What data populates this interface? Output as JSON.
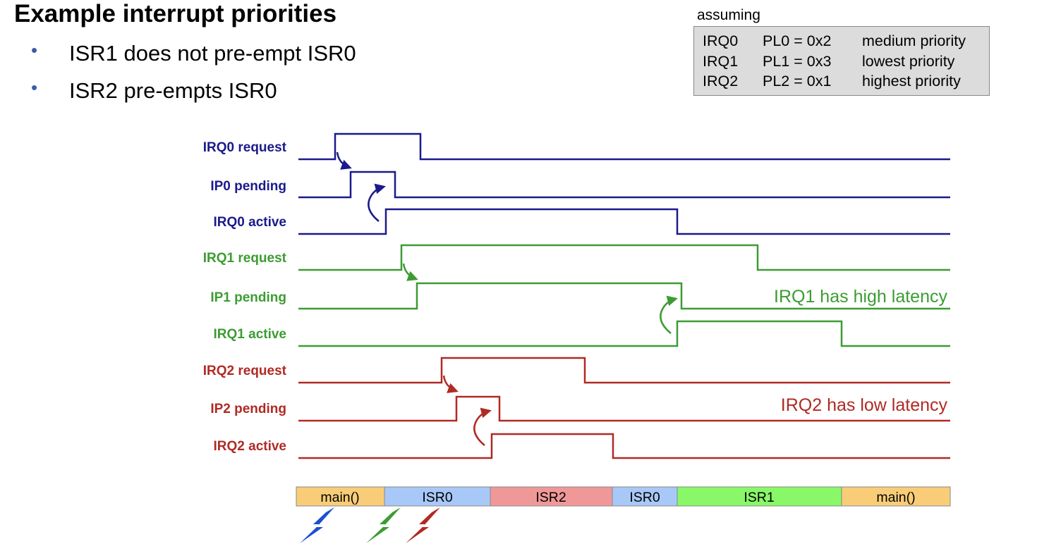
{
  "title": "Example interrupt priorities",
  "bullets": [
    "ISR1 does not pre-empt ISR0",
    "ISR2 pre-empts ISR0"
  ],
  "assumption": {
    "label": "assuming",
    "rows": [
      {
        "irq": "IRQ0",
        "pl": "PL0 = 0x2",
        "priority": "medium priority"
      },
      {
        "irq": "IRQ1",
        "pl": "PL1 = 0x3",
        "priority": "lowest priority"
      },
      {
        "irq": "IRQ2",
        "pl": "PL2 = 0x1",
        "priority": "highest priority"
      }
    ]
  },
  "colors": {
    "irq0": "#1a1a8c",
    "irq1": "#3c9c32",
    "irq2": "#b02a24"
  },
  "signals": [
    {
      "label": "IRQ0 request",
      "group": "irq0"
    },
    {
      "label": "IP0 pending",
      "group": "irq0"
    },
    {
      "label": "IRQ0 active",
      "group": "irq0"
    },
    {
      "label": "IRQ1 request",
      "group": "irq1"
    },
    {
      "label": "IP1 pending",
      "group": "irq1"
    },
    {
      "label": "IRQ1 active",
      "group": "irq1"
    },
    {
      "label": "IRQ2 request",
      "group": "irq2"
    },
    {
      "label": "IP2 pending",
      "group": "irq2"
    },
    {
      "label": "IRQ2 active",
      "group": "irq2"
    }
  ],
  "notes": {
    "irq1": "IRQ1 has high latency",
    "irq2": "IRQ2 has low latency"
  },
  "timeline": [
    {
      "label": "main()",
      "color": "#f9cd78"
    },
    {
      "label": "ISR0",
      "color": "#a8c8f8"
    },
    {
      "label": "ISR2",
      "color": "#f09898"
    },
    {
      "label": "ISR0",
      "color": "#a8c8f8"
    },
    {
      "label": "ISR1",
      "color": "#88f868"
    },
    {
      "label": "main()",
      "color": "#f9cd78"
    }
  ],
  "lightning": [
    {
      "icon": "lightning-bolt-icon",
      "color": "#1a4fd0"
    },
    {
      "icon": "lightning-bolt-icon",
      "color": "#3c9c32"
    },
    {
      "icon": "lightning-bolt-icon",
      "color": "#b02a24"
    }
  ]
}
